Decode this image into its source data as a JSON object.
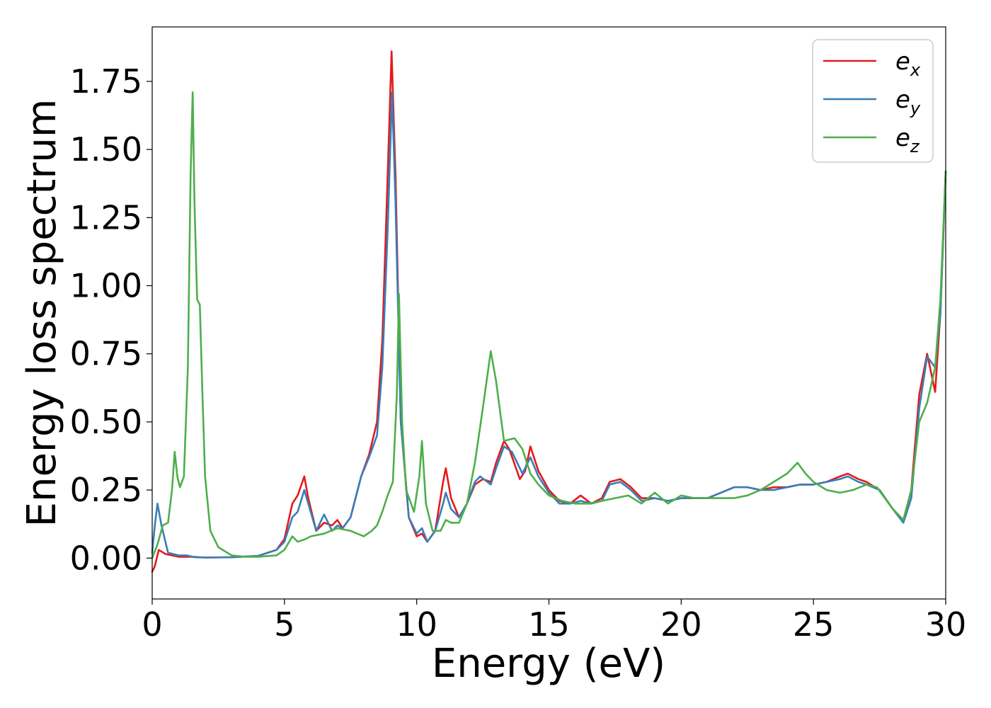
{
  "chart_data": {
    "type": "line",
    "title": "",
    "xlabel": "Energy (eV)",
    "ylabel": "Energy loss spectrum",
    "xlim": [
      0,
      30
    ],
    "ylim": [
      -0.15,
      1.95
    ],
    "xticks": [
      0,
      5,
      10,
      15,
      20,
      25,
      30
    ],
    "xtick_labels": [
      "0",
      "5",
      "10",
      "15",
      "20",
      "25",
      "30"
    ],
    "yticks": [
      0.0,
      0.25,
      0.5,
      0.75,
      1.0,
      1.25,
      1.5,
      1.75
    ],
    "ytick_labels": [
      "0.00",
      "0.25",
      "0.50",
      "0.75",
      "1.00",
      "1.25",
      "1.50",
      "1.75"
    ],
    "grid": false,
    "legend_position": "top-right",
    "series": [
      {
        "name": "e",
        "subscript": "x",
        "color": "#e41a1c",
        "points": [
          [
            0,
            -0.05
          ],
          [
            0.1,
            -0.03
          ],
          [
            0.25,
            0.03
          ],
          [
            0.5,
            0.015
          ],
          [
            1.0,
            0.005
          ],
          [
            1.5,
            0.005
          ],
          [
            2.0,
            0.002
          ],
          [
            3.0,
            0.003
          ],
          [
            4.0,
            0.008
          ],
          [
            4.7,
            0.03
          ],
          [
            5.0,
            0.07
          ],
          [
            5.3,
            0.2
          ],
          [
            5.5,
            0.23
          ],
          [
            5.75,
            0.3
          ],
          [
            5.9,
            0.22
          ],
          [
            6.2,
            0.1
          ],
          [
            6.5,
            0.13
          ],
          [
            6.8,
            0.12
          ],
          [
            7.0,
            0.14
          ],
          [
            7.2,
            0.11
          ],
          [
            7.5,
            0.15
          ],
          [
            7.9,
            0.3
          ],
          [
            8.2,
            0.38
          ],
          [
            8.5,
            0.5
          ],
          [
            8.7,
            0.8
          ],
          [
            8.9,
            1.4
          ],
          [
            9.05,
            1.86
          ],
          [
            9.2,
            1.4
          ],
          [
            9.4,
            0.5
          ],
          [
            9.7,
            0.15
          ],
          [
            10.0,
            0.08
          ],
          [
            10.2,
            0.09
          ],
          [
            10.4,
            0.06
          ],
          [
            10.7,
            0.1
          ],
          [
            11.0,
            0.28
          ],
          [
            11.1,
            0.33
          ],
          [
            11.3,
            0.22
          ],
          [
            11.6,
            0.15
          ],
          [
            11.9,
            0.2
          ],
          [
            12.2,
            0.27
          ],
          [
            12.5,
            0.29
          ],
          [
            12.8,
            0.28
          ],
          [
            13.0,
            0.35
          ],
          [
            13.3,
            0.43
          ],
          [
            13.5,
            0.4
          ],
          [
            13.9,
            0.29
          ],
          [
            14.1,
            0.32
          ],
          [
            14.3,
            0.41
          ],
          [
            14.6,
            0.32
          ],
          [
            15.0,
            0.25
          ],
          [
            15.4,
            0.21
          ],
          [
            15.8,
            0.2
          ],
          [
            16.2,
            0.23
          ],
          [
            16.6,
            0.2
          ],
          [
            17.0,
            0.22
          ],
          [
            17.3,
            0.28
          ],
          [
            17.7,
            0.29
          ],
          [
            18.1,
            0.26
          ],
          [
            18.5,
            0.22
          ],
          [
            19.0,
            0.22
          ],
          [
            19.5,
            0.21
          ],
          [
            20.0,
            0.22
          ],
          [
            20.5,
            0.22
          ],
          [
            21.0,
            0.22
          ],
          [
            21.5,
            0.24
          ],
          [
            22.0,
            0.26
          ],
          [
            22.5,
            0.26
          ],
          [
            23.0,
            0.25
          ],
          [
            23.5,
            0.26
          ],
          [
            24.0,
            0.26
          ],
          [
            24.5,
            0.27
          ],
          [
            25.0,
            0.27
          ],
          [
            25.5,
            0.28
          ],
          [
            26.0,
            0.3
          ],
          [
            26.3,
            0.31
          ],
          [
            26.7,
            0.29
          ],
          [
            27.0,
            0.28
          ],
          [
            27.5,
            0.25
          ],
          [
            28.0,
            0.18
          ],
          [
            28.4,
            0.14
          ],
          [
            28.7,
            0.25
          ],
          [
            29.0,
            0.6
          ],
          [
            29.3,
            0.75
          ],
          [
            29.6,
            0.61
          ],
          [
            29.8,
            0.9
          ],
          [
            30.0,
            1.42
          ]
        ]
      },
      {
        "name": "e",
        "subscript": "y",
        "color": "#377eb8",
        "points": [
          [
            0,
            0.02
          ],
          [
            0.1,
            0.12
          ],
          [
            0.2,
            0.2
          ],
          [
            0.35,
            0.12
          ],
          [
            0.6,
            0.02
          ],
          [
            1.0,
            0.01
          ],
          [
            1.3,
            0.01
          ],
          [
            1.6,
            0.003
          ],
          [
            2.0,
            0.002
          ],
          [
            3.0,
            0.003
          ],
          [
            4.0,
            0.008
          ],
          [
            4.7,
            0.03
          ],
          [
            5.0,
            0.06
          ],
          [
            5.3,
            0.15
          ],
          [
            5.5,
            0.17
          ],
          [
            5.75,
            0.25
          ],
          [
            5.9,
            0.2
          ],
          [
            6.2,
            0.1
          ],
          [
            6.5,
            0.16
          ],
          [
            6.8,
            0.1
          ],
          [
            7.0,
            0.12
          ],
          [
            7.2,
            0.11
          ],
          [
            7.5,
            0.15
          ],
          [
            7.9,
            0.3
          ],
          [
            8.2,
            0.37
          ],
          [
            8.5,
            0.45
          ],
          [
            8.7,
            0.7
          ],
          [
            8.9,
            1.2
          ],
          [
            9.07,
            1.71
          ],
          [
            9.2,
            1.3
          ],
          [
            9.4,
            0.5
          ],
          [
            9.7,
            0.15
          ],
          [
            10.0,
            0.09
          ],
          [
            10.2,
            0.11
          ],
          [
            10.4,
            0.06
          ],
          [
            10.7,
            0.1
          ],
          [
            11.0,
            0.2
          ],
          [
            11.1,
            0.24
          ],
          [
            11.3,
            0.18
          ],
          [
            11.6,
            0.15
          ],
          [
            11.9,
            0.2
          ],
          [
            12.2,
            0.28
          ],
          [
            12.4,
            0.3
          ],
          [
            12.8,
            0.27
          ],
          [
            13.0,
            0.33
          ],
          [
            13.3,
            0.41
          ],
          [
            13.6,
            0.39
          ],
          [
            14.0,
            0.31
          ],
          [
            14.3,
            0.37
          ],
          [
            14.6,
            0.3
          ],
          [
            15.0,
            0.24
          ],
          [
            15.4,
            0.2
          ],
          [
            15.8,
            0.2
          ],
          [
            16.2,
            0.21
          ],
          [
            16.6,
            0.2
          ],
          [
            17.0,
            0.21
          ],
          [
            17.3,
            0.27
          ],
          [
            17.7,
            0.28
          ],
          [
            18.1,
            0.25
          ],
          [
            18.5,
            0.21
          ],
          [
            19.0,
            0.22
          ],
          [
            19.5,
            0.21
          ],
          [
            20.0,
            0.22
          ],
          [
            20.5,
            0.22
          ],
          [
            21.0,
            0.22
          ],
          [
            21.5,
            0.24
          ],
          [
            22.0,
            0.26
          ],
          [
            22.5,
            0.26
          ],
          [
            23.0,
            0.25
          ],
          [
            23.5,
            0.25
          ],
          [
            24.0,
            0.26
          ],
          [
            24.5,
            0.27
          ],
          [
            25.0,
            0.27
          ],
          [
            25.5,
            0.28
          ],
          [
            26.0,
            0.29
          ],
          [
            26.3,
            0.3
          ],
          [
            26.7,
            0.28
          ],
          [
            27.0,
            0.27
          ],
          [
            27.5,
            0.25
          ],
          [
            28.0,
            0.18
          ],
          [
            28.4,
            0.13
          ],
          [
            28.7,
            0.22
          ],
          [
            29.0,
            0.55
          ],
          [
            29.3,
            0.74
          ],
          [
            29.6,
            0.7
          ],
          [
            29.8,
            0.9
          ],
          [
            30.0,
            1.42
          ]
        ]
      },
      {
        "name": "e",
        "subscript": "z",
        "color": "#4daf4a",
        "points": [
          [
            0,
            0.0
          ],
          [
            0.2,
            0.05
          ],
          [
            0.4,
            0.12
          ],
          [
            0.6,
            0.13
          ],
          [
            0.75,
            0.25
          ],
          [
            0.85,
            0.39
          ],
          [
            0.95,
            0.3
          ],
          [
            1.05,
            0.26
          ],
          [
            1.2,
            0.3
          ],
          [
            1.35,
            0.7
          ],
          [
            1.45,
            1.4
          ],
          [
            1.53,
            1.71
          ],
          [
            1.6,
            1.3
          ],
          [
            1.7,
            0.95
          ],
          [
            1.8,
            0.93
          ],
          [
            1.9,
            0.6
          ],
          [
            2.0,
            0.3
          ],
          [
            2.2,
            0.1
          ],
          [
            2.5,
            0.04
          ],
          [
            3.0,
            0.01
          ],
          [
            3.5,
            0.005
          ],
          [
            4.0,
            0.005
          ],
          [
            4.7,
            0.01
          ],
          [
            5.0,
            0.03
          ],
          [
            5.3,
            0.08
          ],
          [
            5.5,
            0.06
          ],
          [
            5.8,
            0.07
          ],
          [
            6.0,
            0.08
          ],
          [
            6.5,
            0.09
          ],
          [
            7.0,
            0.11
          ],
          [
            7.5,
            0.1
          ],
          [
            8.0,
            0.08
          ],
          [
            8.3,
            0.1
          ],
          [
            8.5,
            0.12
          ],
          [
            8.7,
            0.17
          ],
          [
            8.9,
            0.23
          ],
          [
            9.1,
            0.28
          ],
          [
            9.25,
            0.6
          ],
          [
            9.33,
            0.97
          ],
          [
            9.45,
            0.5
          ],
          [
            9.6,
            0.25
          ],
          [
            9.9,
            0.17
          ],
          [
            10.1,
            0.3
          ],
          [
            10.2,
            0.43
          ],
          [
            10.35,
            0.2
          ],
          [
            10.6,
            0.1
          ],
          [
            10.9,
            0.1
          ],
          [
            11.1,
            0.14
          ],
          [
            11.3,
            0.13
          ],
          [
            11.6,
            0.13
          ],
          [
            11.9,
            0.2
          ],
          [
            12.2,
            0.35
          ],
          [
            12.5,
            0.55
          ],
          [
            12.8,
            0.76
          ],
          [
            13.0,
            0.65
          ],
          [
            13.3,
            0.43
          ],
          [
            13.7,
            0.44
          ],
          [
            14.0,
            0.4
          ],
          [
            14.3,
            0.31
          ],
          [
            14.6,
            0.27
          ],
          [
            15.0,
            0.23
          ],
          [
            15.5,
            0.21
          ],
          [
            16.0,
            0.2
          ],
          [
            16.5,
            0.2
          ],
          [
            17.0,
            0.21
          ],
          [
            17.5,
            0.22
          ],
          [
            18.0,
            0.23
          ],
          [
            18.5,
            0.2
          ],
          [
            19.0,
            0.24
          ],
          [
            19.5,
            0.2
          ],
          [
            20.0,
            0.23
          ],
          [
            20.5,
            0.22
          ],
          [
            21.0,
            0.22
          ],
          [
            21.5,
            0.22
          ],
          [
            22.0,
            0.22
          ],
          [
            22.5,
            0.23
          ],
          [
            23.0,
            0.25
          ],
          [
            23.5,
            0.28
          ],
          [
            24.0,
            0.31
          ],
          [
            24.4,
            0.35
          ],
          [
            24.7,
            0.31
          ],
          [
            25.0,
            0.28
          ],
          [
            25.5,
            0.25
          ],
          [
            26.0,
            0.24
          ],
          [
            26.5,
            0.25
          ],
          [
            27.0,
            0.27
          ],
          [
            27.4,
            0.26
          ],
          [
            28.0,
            0.18
          ],
          [
            28.4,
            0.14
          ],
          [
            28.7,
            0.25
          ],
          [
            29.0,
            0.5
          ],
          [
            29.3,
            0.57
          ],
          [
            29.6,
            0.7
          ],
          [
            29.8,
            0.95
          ],
          [
            30.0,
            1.42
          ]
        ]
      }
    ]
  }
}
